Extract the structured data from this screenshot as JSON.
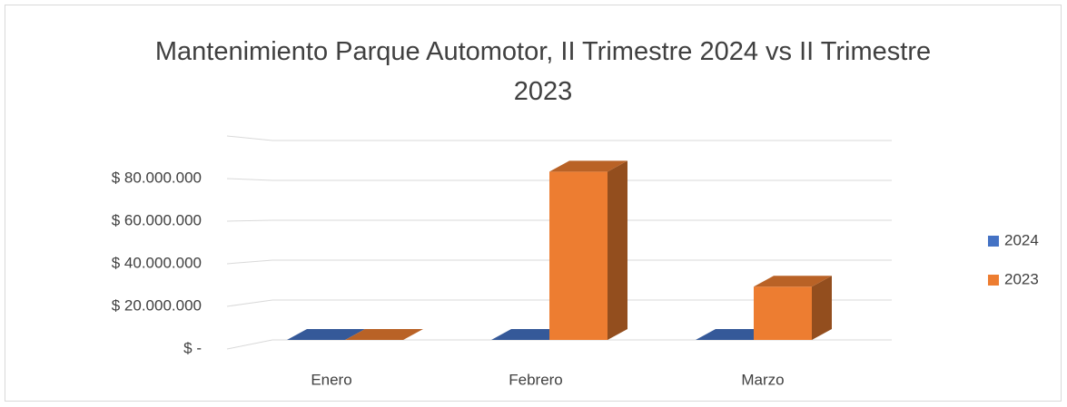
{
  "chart_data": {
    "type": "bar3d",
    "title": "Mantenimiento Parque Automotor, II Trimestre 2024 vs II Trimestre 2023",
    "categories": [
      "Enero",
      "Febrero",
      "Marzo"
    ],
    "series": [
      {
        "name": "2024",
        "color": "#4472c4",
        "values": [
          0,
          0,
          0
        ]
      },
      {
        "name": "2023",
        "color": "#ed7d31",
        "values": [
          0,
          79000000,
          25000000
        ]
      }
    ],
    "ylim": [
      0,
      100000000
    ],
    "yticks": [
      {
        "value": 0,
        "label": "$ -"
      },
      {
        "value": 20000000,
        "label": "$ 20.000.000"
      },
      {
        "value": 40000000,
        "label": "$ 40.000.000"
      },
      {
        "value": 60000000,
        "label": "$ 60.000.000"
      },
      {
        "value": 80000000,
        "label": "$ 80.000.000"
      },
      {
        "value": 100000000,
        "label": ""
      }
    ],
    "grid": true,
    "legend": "right"
  }
}
